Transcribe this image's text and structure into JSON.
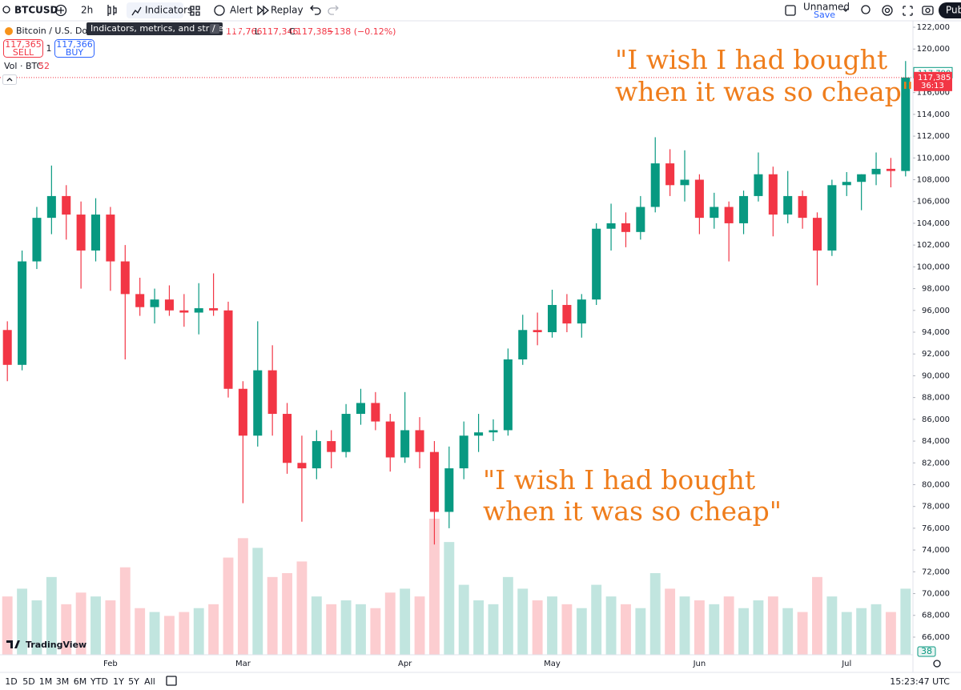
{
  "toolbar": {
    "symbol": "BTCUSD",
    "interval": "2h",
    "indicators": "Indicators",
    "alert": "Alert",
    "replay": "Replay",
    "layout_name": "Unnamed",
    "save": "Save",
    "publish": "Pub"
  },
  "tooltip": {
    "text": "Indicators, metrics, and strategies",
    "shortcut": "/"
  },
  "legend": {
    "symbol_name": "Bitcoin / U.S. Dolla",
    "high": "117,766",
    "low_label": "L",
    "low": "117,346",
    "close_label": "C",
    "close": "117,385",
    "change": "−138 (−0.12%)",
    "sell_price": "117,365",
    "sell": "SELL",
    "spread": "1",
    "buy_price": "117,366",
    "buy": "BUY",
    "volume_label": "Vol · BTC",
    "volume": "52"
  },
  "chart_data": {
    "type": "candlestick",
    "categories": [
      null,
      null,
      null,
      null,
      null,
      null,
      null,
      "Feb",
      null,
      null,
      null,
      null,
      null,
      null,
      null,
      null,
      "Mar",
      null,
      null,
      null,
      null,
      null,
      null,
      null,
      null,
      null,
      null,
      "Apr",
      null,
      null,
      null,
      null,
      null,
      null,
      null,
      null,
      null,
      "May",
      null,
      null,
      null,
      null,
      null,
      null,
      null,
      null,
      null,
      "Jun",
      null,
      null,
      null,
      null,
      null,
      null,
      null,
      null,
      null,
      "Jul",
      null,
      null,
      null,
      null
    ],
    "open": [
      94200,
      91000,
      100500,
      104500,
      106500,
      104800,
      101500,
      104800,
      100500,
      97500,
      96300,
      97000,
      96000,
      95800,
      96200,
      96000,
      88800,
      84500,
      90500,
      86500,
      82000,
      81500,
      84000,
      83000,
      86500,
      87500,
      85800,
      82500,
      85000,
      83000,
      77500,
      81500,
      84500,
      84800,
      85000,
      91500,
      94200,
      94000,
      96500,
      94800,
      97000,
      103500,
      104000,
      103200,
      105500,
      109500,
      107500,
      108000,
      104500,
      105500,
      104000,
      106500,
      108500,
      104800,
      106500,
      104500,
      101500,
      107500,
      107800,
      108500,
      109000,
      108800
    ],
    "high": [
      95000,
      101500,
      105500,
      109300,
      107500,
      106000,
      106300,
      105500,
      102000,
      99000,
      98000,
      98300,
      97500,
      98500,
      99400,
      96800,
      89500,
      95000,
      92800,
      87500,
      84500,
      85000,
      85000,
      87400,
      88800,
      88500,
      86500,
      88500,
      86200,
      84000,
      83500,
      85800,
      86500,
      86000,
      92500,
      95600,
      95800,
      97900,
      97500,
      97500,
      104000,
      105800,
      105000,
      106500,
      111900,
      110800,
      110700,
      108500,
      106800,
      106000,
      107000,
      110500,
      109200,
      108800,
      107000,
      105000,
      108000,
      108700,
      108500,
      110500,
      110000,
      118900
    ],
    "low": [
      89500,
      90500,
      99800,
      103000,
      102500,
      98000,
      100500,
      97800,
      91500,
      95500,
      94800,
      95500,
      94500,
      93800,
      95500,
      88000,
      78300,
      83500,
      84500,
      81000,
      76600,
      80500,
      81500,
      82500,
      85500,
      85000,
      81200,
      82000,
      81500,
      74500,
      76000,
      80500,
      83000,
      84000,
      84500,
      91000,
      92800,
      93500,
      94000,
      93500,
      96500,
      101500,
      101800,
      102500,
      105000,
      106500,
      106000,
      103000,
      103500,
      100500,
      103000,
      106000,
      102800,
      104000,
      103500,
      98300,
      101000,
      106500,
      105200,
      107500,
      107300,
      108300
    ],
    "close": [
      91000,
      100500,
      104500,
      106500,
      104800,
      101500,
      104800,
      100500,
      97500,
      96300,
      97000,
      96000,
      95800,
      96200,
      96000,
      88800,
      84500,
      90500,
      86500,
      82000,
      81500,
      84000,
      83000,
      86500,
      87500,
      85800,
      82500,
      85000,
      83000,
      77500,
      81500,
      84500,
      84800,
      85000,
      91500,
      94200,
      94000,
      96500,
      94800,
      97000,
      103500,
      104000,
      103200,
      105500,
      109500,
      107500,
      108000,
      104500,
      105500,
      104000,
      106500,
      108500,
      104800,
      106500,
      104500,
      101500,
      107500,
      107800,
      108500,
      109000,
      108800,
      117385
    ],
    "volume": [
      30,
      34,
      28,
      40,
      26,
      32,
      30,
      28,
      45,
      24,
      22,
      20,
      22,
      24,
      26,
      50,
      60,
      55,
      40,
      42,
      48,
      30,
      26,
      28,
      26,
      24,
      32,
      34,
      30,
      70,
      58,
      36,
      28,
      26,
      40,
      34,
      28,
      30,
      26,
      24,
      36,
      30,
      26,
      24,
      42,
      34,
      30,
      28,
      26,
      30,
      24,
      28,
      30,
      24,
      22,
      40,
      30,
      22,
      24,
      26,
      22,
      34
    ],
    "up_color": "#089981",
    "down_color": "#f23645",
    "ylim": [
      64380,
      122590
    ],
    "yticks": [
      {
        "value": 122000,
        "label": "122,000"
      },
      {
        "value": 120000,
        "label": "120,000"
      },
      {
        "value": 116000,
        "label": "116,000"
      },
      {
        "value": 114000,
        "label": "114,000"
      },
      {
        "value": 112000,
        "label": "112,000"
      },
      {
        "value": 110000,
        "label": "110,000"
      },
      {
        "value": 108000,
        "label": "108,000"
      },
      {
        "value": 106000,
        "label": "106,000"
      },
      {
        "value": 104000,
        "label": "104,000"
      },
      {
        "value": 102000,
        "label": "102,000"
      },
      {
        "value": 100000,
        "label": "100,000"
      },
      {
        "value": 98000,
        "label": "98,000"
      },
      {
        "value": 96000,
        "label": "96,000"
      },
      {
        "value": 94000,
        "label": "94,000"
      },
      {
        "value": 92000,
        "label": "92,000"
      },
      {
        "value": 90000,
        "label": "90,000"
      },
      {
        "value": 88000,
        "label": "88,000"
      },
      {
        "value": 86000,
        "label": "86,000"
      },
      {
        "value": 84000,
        "label": "84,000"
      },
      {
        "value": 82000,
        "label": "82,000"
      },
      {
        "value": 80000,
        "label": "80,000"
      },
      {
        "value": 78000,
        "label": "78,000"
      },
      {
        "value": 76000,
        "label": "76,000"
      },
      {
        "value": 74000,
        "label": "74,000"
      },
      {
        "value": 72000,
        "label": "72,000"
      },
      {
        "value": 70000,
        "label": "70,000"
      },
      {
        "value": 68000,
        "label": "68,000"
      },
      {
        "value": 66000,
        "label": "66,000"
      }
    ],
    "high_marker": {
      "value": 117790,
      "label": "117,790"
    },
    "last_price": {
      "value": 117385,
      "label": "117,385"
    },
    "countdown": "36:13",
    "annotations": [
      [
        "\"I wish I had bought",
        "when it was so cheap\""
      ],
      [
        "\"I wish I had bought",
        "when it was so cheap\""
      ]
    ]
  },
  "bottom_bar": {
    "ranges": [
      "1D",
      "5D",
      "1M",
      "3M",
      "6M",
      "YTD",
      "1Y",
      "5Y",
      "All"
    ],
    "clock": "15:23:47 UTC"
  },
  "branding": "TradingView",
  "volume_badge": "38"
}
